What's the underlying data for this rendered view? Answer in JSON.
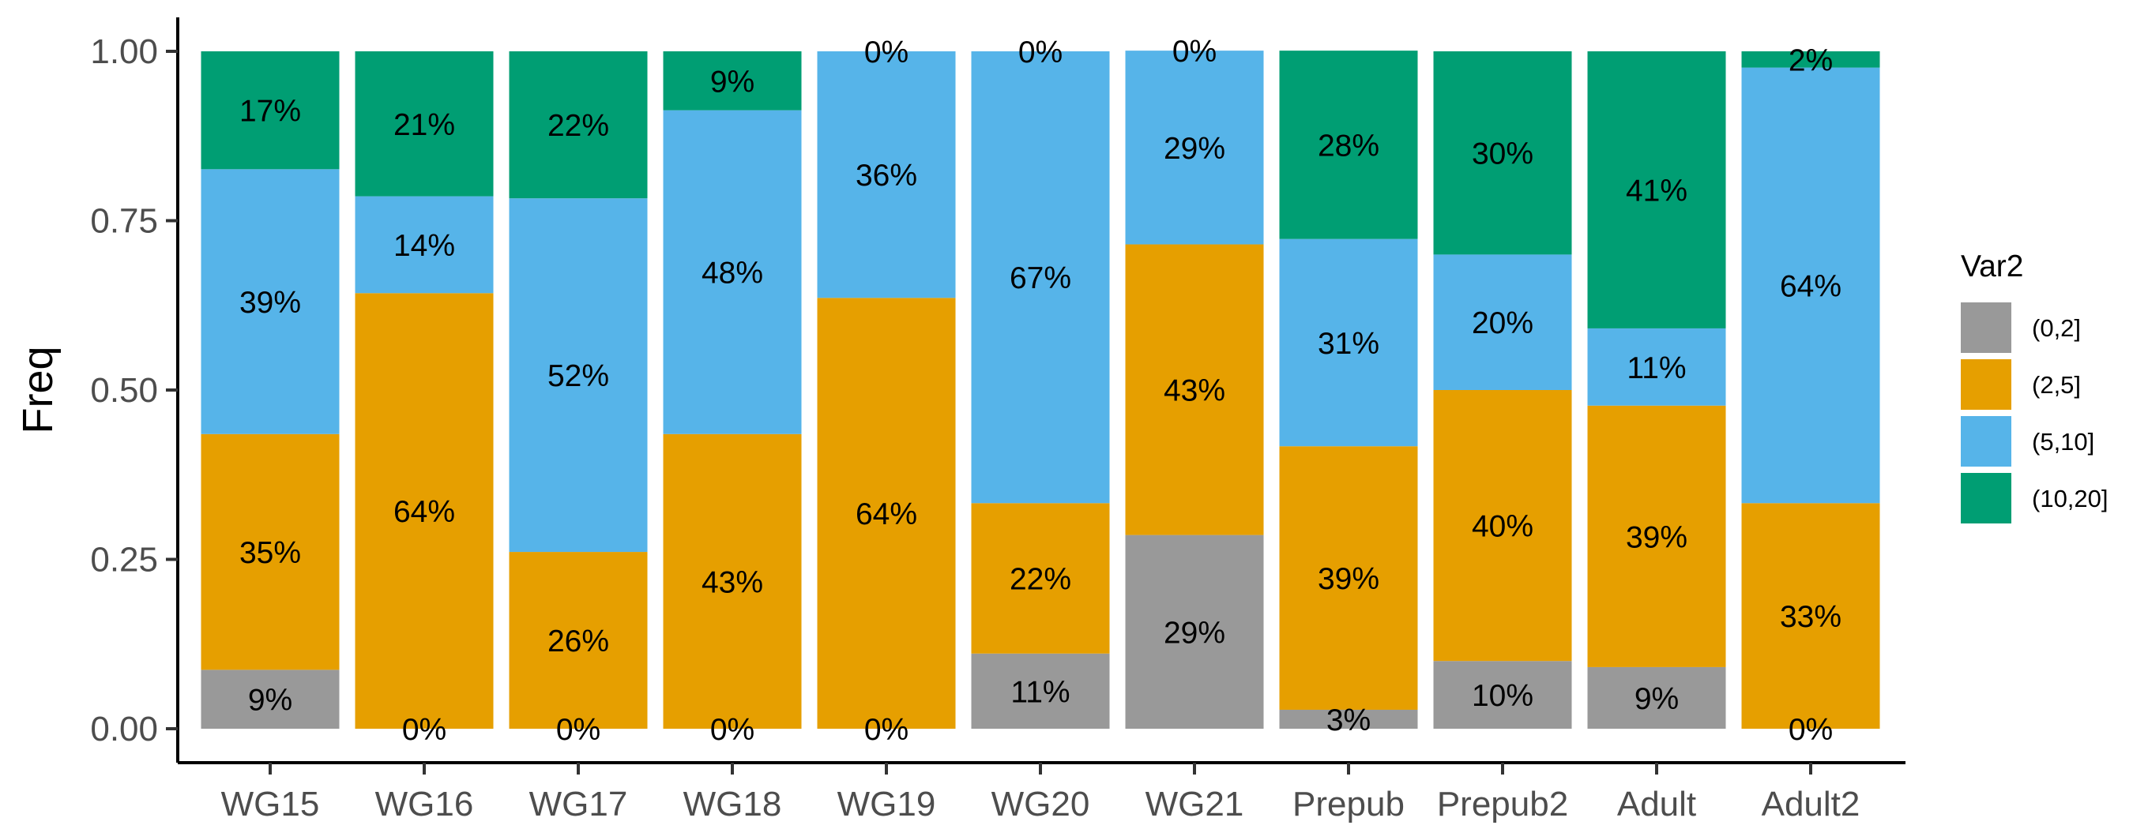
{
  "chart_data": {
    "type": "bar",
    "stacked": true,
    "ylabel": "Freq",
    "ylim": [
      0,
      1
    ],
    "yticks": [
      "0.00",
      "0.25",
      "0.50",
      "0.75",
      "1.00"
    ],
    "categories": [
      "WG15",
      "WG16",
      "WG17",
      "WG18",
      "WG19",
      "WG20",
      "WG21",
      "Prepub",
      "Prepub2",
      "Adult",
      "Adult2"
    ],
    "legend": {
      "title": "Var2",
      "position": "right"
    },
    "grid": false,
    "series": [
      {
        "name": "(0,2]",
        "color": "#999999",
        "values": [
          0.087,
          0.0,
          0.0,
          0.0,
          0.0,
          0.111,
          0.286,
          0.028,
          0.1,
          0.091,
          0.0
        ],
        "labels": [
          "9%",
          "0%",
          "0%",
          "0%",
          "0%",
          "11%",
          "29%",
          "3%",
          "10%",
          "9%",
          "0%"
        ]
      },
      {
        "name": "(2,5]",
        "color": "#E69F00",
        "values": [
          0.348,
          0.643,
          0.261,
          0.435,
          0.636,
          0.222,
          0.429,
          0.389,
          0.4,
          0.386,
          0.333
        ],
        "labels": [
          "35%",
          "64%",
          "26%",
          "43%",
          "64%",
          "22%",
          "43%",
          "39%",
          "40%",
          "39%",
          "33%"
        ]
      },
      {
        "name": "(5,10]",
        "color": "#56B4E9",
        "values": [
          0.391,
          0.143,
          0.522,
          0.478,
          0.364,
          0.667,
          0.286,
          0.306,
          0.2,
          0.114,
          0.643
        ],
        "labels": [
          "39%",
          "14%",
          "52%",
          "48%",
          "36%",
          "67%",
          "29%",
          "31%",
          "20%",
          "11%",
          "64%"
        ]
      },
      {
        "name": "(10,20]",
        "color": "#009E73",
        "values": [
          0.174,
          0.214,
          0.217,
          0.087,
          0.0,
          0.0,
          0.0,
          0.278,
          0.3,
          0.409,
          0.024
        ],
        "labels": [
          "17%",
          "21%",
          "22%",
          "9%",
          "0%",
          "0%",
          "0%",
          "28%",
          "30%",
          "41%",
          "2%"
        ]
      }
    ]
  }
}
